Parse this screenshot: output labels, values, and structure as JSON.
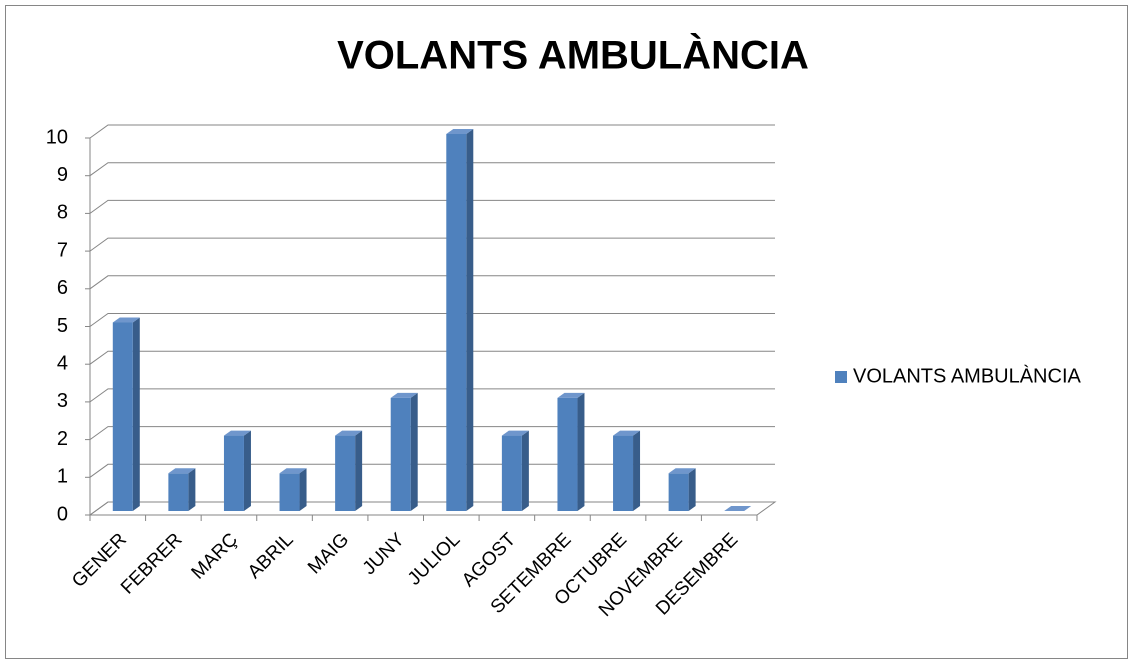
{
  "chart_data": {
    "type": "bar3d",
    "title": "VOLANTS AMBULÀNCIA",
    "categories": [
      "GENER",
      "FEBRER",
      "MARÇ",
      "ABRIL",
      "MAIG",
      "JUNY",
      "JULIOL",
      "AGOST",
      "SETEMBRE",
      "OCTUBRE",
      "NOVEMBRE",
      "DESEMBRE"
    ],
    "series": [
      {
        "name": "VOLANTS AMBULÀNCIA",
        "color": "#4f81bd",
        "values": [
          5,
          1,
          2,
          1,
          2,
          3,
          10,
          2,
          3,
          2,
          1,
          0
        ]
      }
    ],
    "ylim": [
      0,
      10
    ],
    "yticks": [
      0,
      1,
      2,
      3,
      4,
      5,
      6,
      7,
      8,
      9,
      10
    ],
    "grid": true,
    "legend": "right"
  }
}
